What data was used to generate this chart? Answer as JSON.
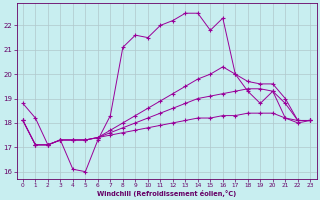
{
  "xlabel": "Windchill (Refroidissement éolien,°C)",
  "bg_color": "#c8eef0",
  "grid_color": "#b0c8cc",
  "line_color": "#990099",
  "xlim": [
    -0.5,
    23.5
  ],
  "ylim": [
    15.7,
    22.9
  ],
  "xticks": [
    0,
    1,
    2,
    3,
    4,
    5,
    6,
    7,
    8,
    9,
    10,
    11,
    12,
    13,
    14,
    15,
    16,
    17,
    18,
    19,
    20,
    21,
    22,
    23
  ],
  "yticks": [
    16,
    17,
    18,
    19,
    20,
    21,
    22
  ],
  "lines": [
    {
      "x": [
        0,
        1,
        2,
        3,
        4,
        5,
        6,
        7,
        8,
        9,
        10,
        11,
        12,
        13,
        14,
        15,
        16,
        17,
        18,
        19,
        20,
        21,
        22,
        23
      ],
      "y": [
        18.8,
        18.2,
        17.1,
        17.3,
        16.1,
        16.0,
        17.3,
        18.3,
        21.1,
        21.6,
        21.5,
        22.0,
        22.2,
        22.5,
        22.5,
        21.8,
        22.3,
        20.0,
        19.3,
        18.8,
        19.3,
        18.2,
        18.0,
        18.1
      ]
    },
    {
      "x": [
        0,
        1,
        2,
        3,
        4,
        5,
        6,
        7,
        8,
        9,
        10,
        11,
        12,
        13,
        14,
        15,
        16,
        17,
        18,
        19,
        20,
        21,
        22,
        23
      ],
      "y": [
        18.1,
        17.1,
        17.1,
        17.3,
        17.3,
        17.3,
        17.4,
        17.7,
        18.0,
        18.3,
        18.6,
        18.9,
        19.2,
        19.5,
        19.8,
        20.0,
        20.3,
        20.0,
        19.7,
        19.6,
        19.6,
        19.0,
        18.1,
        18.1
      ]
    },
    {
      "x": [
        0,
        1,
        2,
        3,
        4,
        5,
        6,
        7,
        8,
        9,
        10,
        11,
        12,
        13,
        14,
        15,
        16,
        17,
        18,
        19,
        20,
        21,
        22,
        23
      ],
      "y": [
        18.1,
        17.1,
        17.1,
        17.3,
        17.3,
        17.3,
        17.4,
        17.6,
        17.8,
        18.0,
        18.2,
        18.4,
        18.6,
        18.8,
        19.0,
        19.1,
        19.2,
        19.3,
        19.4,
        19.4,
        19.3,
        18.8,
        18.1,
        18.1
      ]
    },
    {
      "x": [
        0,
        1,
        2,
        3,
        4,
        5,
        6,
        7,
        8,
        9,
        10,
        11,
        12,
        13,
        14,
        15,
        16,
        17,
        18,
        19,
        20,
        21,
        22,
        23
      ],
      "y": [
        18.1,
        17.1,
        17.1,
        17.3,
        17.3,
        17.3,
        17.4,
        17.5,
        17.6,
        17.7,
        17.8,
        17.9,
        18.0,
        18.1,
        18.2,
        18.2,
        18.3,
        18.3,
        18.4,
        18.4,
        18.4,
        18.2,
        18.1,
        18.1
      ]
    }
  ]
}
